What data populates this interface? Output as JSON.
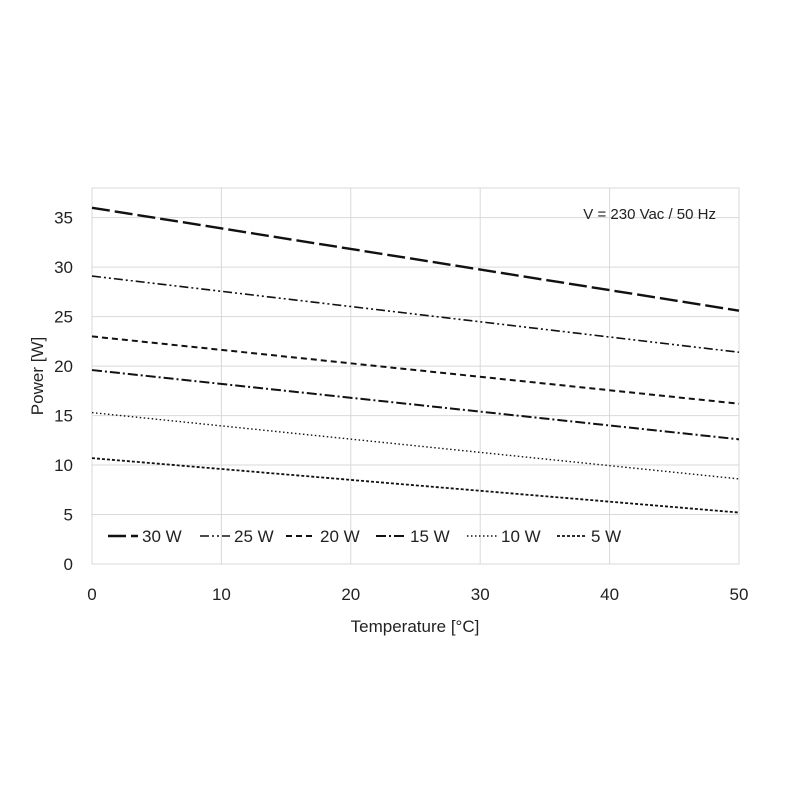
{
  "chart_data": {
    "type": "line",
    "title": "",
    "xlabel": "Temperature [°C]",
    "ylabel": "Power [W]",
    "xlim": [
      0,
      50
    ],
    "ylim": [
      0,
      38
    ],
    "xticks": [
      "0",
      "10",
      "20",
      "30",
      "40",
      "50"
    ],
    "yticks": [
      "0",
      "5",
      "10",
      "15",
      "20",
      "25",
      "30",
      "35"
    ],
    "grid": true,
    "legend_position": "bottom-left",
    "annotation": "V = 230 Vac / 50 Hz",
    "x": [
      0,
      50
    ],
    "series": [
      {
        "name": "30 W",
        "values": [
          36.0,
          25.6
        ],
        "style": "longdash"
      },
      {
        "name": "25 W",
        "values": [
          29.1,
          21.4
        ],
        "style": "dashdotdot"
      },
      {
        "name": "20 W",
        "values": [
          23.0,
          16.2
        ],
        "style": "dash"
      },
      {
        "name": "15 W",
        "values": [
          19.6,
          12.6
        ],
        "style": "dashdot"
      },
      {
        "name": "10 W",
        "values": [
          15.3,
          8.6
        ],
        "style": "dot"
      },
      {
        "name": "5 W",
        "values": [
          10.7,
          5.2
        ],
        "style": "densedash"
      }
    ],
    "colors": {
      "line": "#111111",
      "grid": "#d9d9d9",
      "frame": "#d9d9d9"
    }
  }
}
